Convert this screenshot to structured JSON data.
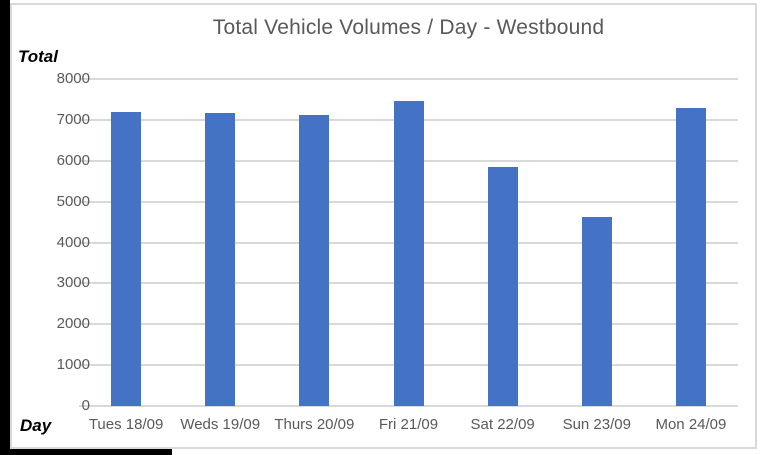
{
  "window": {
    "edge_color": "#000000",
    "frame_border_color": "#d9d9d9",
    "background_color": "#ffffff"
  },
  "chart_data": {
    "type": "bar",
    "title": "Total Vehicle Volumes / Day - Westbound",
    "xlabel": "Day",
    "ylabel": "Total",
    "categories": [
      "Tues 18/09",
      "Weds 19/09",
      "Thurs 20/09",
      "Fri 21/09",
      "Sat 22/09",
      "Sun 23/09",
      "Mon 24/09"
    ],
    "values": [
      7190,
      7170,
      7130,
      7460,
      5850,
      4620,
      7280
    ],
    "ylim": [
      0,
      8000
    ],
    "yticks": [
      8000,
      7000,
      6000,
      5000,
      4000,
      3000,
      2000,
      1000,
      0
    ],
    "grid": true,
    "legend_position": "none",
    "bar_color": "#4472c4",
    "gridline_color": "#d9d9d9",
    "text_color": "#595959",
    "axis_title_color": "#000000"
  }
}
